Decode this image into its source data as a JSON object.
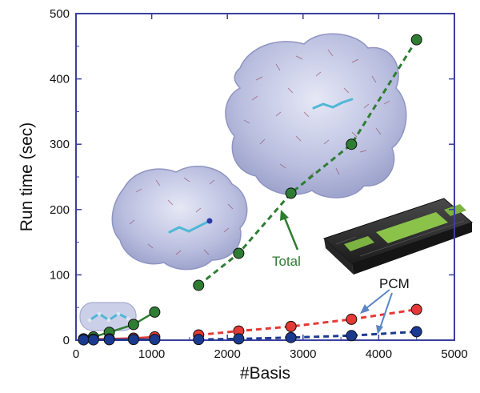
{
  "chart_data": {
    "type": "scatter",
    "title": "",
    "xlabel": "#Basis",
    "ylabel": "Run time (sec)",
    "xlim": [
      0,
      5000
    ],
    "ylim": [
      0,
      500
    ],
    "xticks": [
      0,
      1000,
      2000,
      3000,
      4000,
      5000
    ],
    "yticks": [
      0,
      100,
      200,
      300,
      400,
      500
    ],
    "grid": false,
    "legend": "none",
    "series": [
      {
        "group": "small",
        "color": "#2e7d32",
        "line": "solid",
        "points": [
          [
            100,
            2
          ],
          [
            230,
            5
          ],
          [
            440,
            12
          ],
          [
            760,
            24
          ],
          [
            1040,
            43
          ]
        ]
      },
      {
        "group": "small",
        "color": "#e53935",
        "line": "solid",
        "points": [
          [
            100,
            1
          ],
          [
            230,
            1.5
          ],
          [
            440,
            2
          ],
          [
            760,
            3
          ],
          [
            1040,
            5
          ]
        ]
      },
      {
        "group": "small",
        "color": "#1a3a8f",
        "line": "solid",
        "points": [
          [
            100,
            0.5
          ],
          [
            230,
            0.5
          ],
          [
            440,
            0.7
          ],
          [
            760,
            1
          ],
          [
            1040,
            1
          ]
        ]
      },
      {
        "group": "large",
        "color": "#2e7d32",
        "line": "dashed",
        "points": [
          [
            1620,
            84
          ],
          [
            2150,
            133
          ],
          [
            2840,
            225
          ],
          [
            3640,
            300
          ],
          [
            4500,
            460
          ]
        ]
      },
      {
        "group": "large",
        "color": "#e53935",
        "line": "dashed",
        "points": [
          [
            1620,
            8
          ],
          [
            2150,
            14
          ],
          [
            2840,
            21
          ],
          [
            3640,
            32
          ],
          [
            4500,
            47
          ]
        ]
      },
      {
        "group": "large",
        "color": "#1a3a8f",
        "line": "dashed",
        "points": [
          [
            1620,
            1
          ],
          [
            2150,
            2
          ],
          [
            2840,
            4
          ],
          [
            3640,
            7
          ],
          [
            4500,
            13
          ]
        ]
      }
    ],
    "annotations": {
      "total_label": "Total",
      "pcm_label": "PCM"
    }
  },
  "colors": {
    "axis": "#3b3f9e",
    "total": "#2e7d32",
    "pcm_red": "#e53935",
    "pcm_blue": "#1a3a8f",
    "protein_surface": "#b9bedf",
    "gpu_body": "#2b2b2b",
    "gpu_accent": "#8bc34a"
  },
  "illustrations": [
    "small-molecule-icon",
    "medium-protein-icon",
    "large-protein-icon",
    "gpu-card-icon"
  ]
}
